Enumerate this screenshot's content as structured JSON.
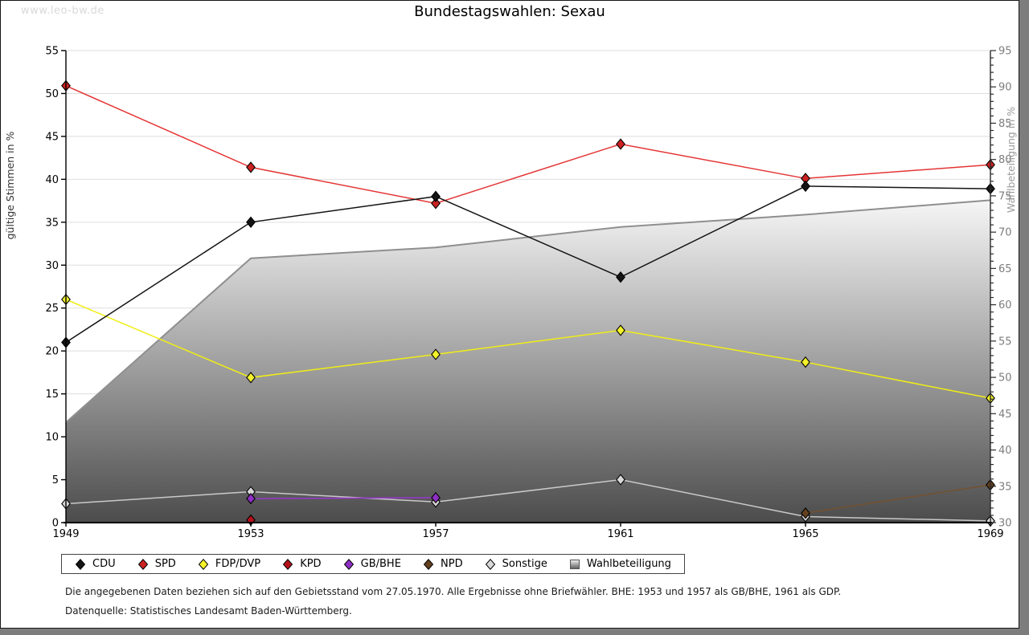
{
  "watermark": "www.leo-bw.de",
  "title": "Bundestagswahlen: Sexau",
  "footnote1": "Die angegebenen Daten beziehen sich auf den Gebietsstand vom 27.05.1970. Alle Ergebnisse ohne Briefwähler. BHE: 1953 und 1957 als GB/BHE, 1961 als GDP.",
  "footnote2": "Datenquelle: Statistisches Landesamt Baden-Württemberg.",
  "chart_data": {
    "type": "line",
    "x": [
      1949,
      1953,
      1957,
      1961,
      1965,
      1969
    ],
    "ylabel_left": "gültige Stimmen in %",
    "ylabel_right": "Wahlbeteiligung in %",
    "ylim_left": [
      0,
      55
    ],
    "ylim_right": [
      30,
      95
    ],
    "ytick_step": 5,
    "grid": true,
    "legend_position": "bottom",
    "series": [
      {
        "name": "CDU",
        "axis": "left",
        "marker": "diamond",
        "line_color": "#141414",
        "marker_color": "#141414",
        "points": [
          [
            1949,
            21.0
          ],
          [
            1953,
            35.0
          ],
          [
            1957,
            38.0
          ],
          [
            1961,
            28.6
          ],
          [
            1965,
            39.2
          ],
          [
            1969,
            38.9
          ]
        ]
      },
      {
        "name": "SPD",
        "axis": "left",
        "marker": "diamond",
        "line_color": "#e53535",
        "marker_color": "#cc2222",
        "points": [
          [
            1949,
            50.9
          ],
          [
            1953,
            41.4
          ],
          [
            1957,
            37.2
          ],
          [
            1961,
            44.1
          ],
          [
            1965,
            40.1
          ],
          [
            1969,
            41.7
          ]
        ]
      },
      {
        "name": "FDP/DVP",
        "axis": "left",
        "marker": "diamond",
        "line_color": "#f0ee14",
        "marker_color": "#f4f22a",
        "points": [
          [
            1949,
            26.0
          ],
          [
            1953,
            16.9
          ],
          [
            1957,
            19.6
          ],
          [
            1961,
            22.4
          ],
          [
            1965,
            18.7
          ],
          [
            1969,
            14.5
          ]
        ]
      },
      {
        "name": "KPD",
        "axis": "left",
        "marker": "diamond",
        "line_color": "#b5121b",
        "marker_color": "#b5121b",
        "points": [
          [
            1953,
            0.3
          ]
        ]
      },
      {
        "name": "GB/BHE",
        "axis": "left",
        "marker": "diamond",
        "line_color": "#9a37cf",
        "marker_color": "#8e2fc4",
        "points": [
          [
            1953,
            2.8
          ],
          [
            1957,
            2.9
          ]
        ]
      },
      {
        "name": "NPD",
        "axis": "left",
        "marker": "diamond",
        "line_color": "#74512f",
        "marker_color": "#63411f",
        "points": [
          [
            1965,
            1.1
          ],
          [
            1969,
            4.4
          ]
        ]
      },
      {
        "name": "Sonstige",
        "axis": "left",
        "marker": "diamond",
        "line_color": "#c9c9c9",
        "marker_color": "#d8d8d8",
        "points": [
          [
            1949,
            2.2
          ],
          [
            1953,
            3.6
          ],
          [
            1957,
            2.4
          ],
          [
            1961,
            5.0
          ],
          [
            1965,
            0.7
          ],
          [
            1969,
            0.2
          ]
        ]
      },
      {
        "name": "Wahlbeteiligung",
        "axis": "right",
        "marker": "square",
        "type": "area",
        "line_color": "#8f8f8f",
        "marker_color": "#bdbdbd",
        "points": [
          [
            1949,
            43.8
          ],
          [
            1953,
            66.4
          ],
          [
            1957,
            67.9
          ],
          [
            1961,
            70.7
          ],
          [
            1965,
            72.4
          ],
          [
            1969,
            74.4
          ]
        ]
      }
    ]
  }
}
